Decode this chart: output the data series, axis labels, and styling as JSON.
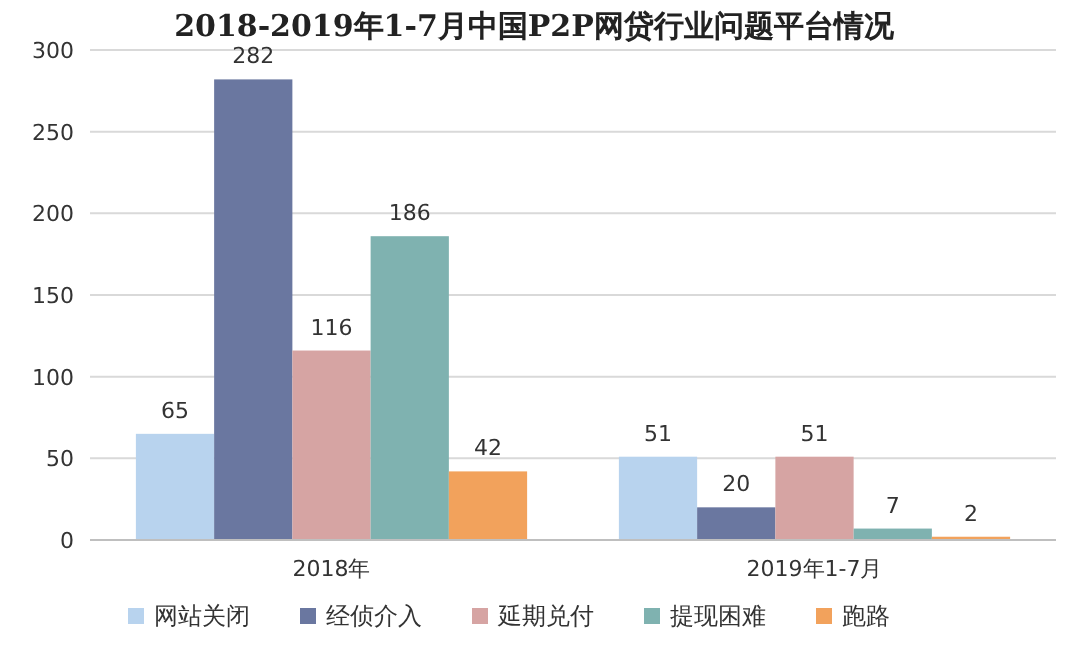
{
  "chart_data": {
    "type": "bar",
    "title": "2018-2019年1-7月中国P2P网贷行业问题平台情况",
    "categories": [
      "2018年",
      "2019年1-7月"
    ],
    "series": [
      {
        "name": "网站关闭",
        "color": "#b8d3ee",
        "values": [
          65,
          51
        ]
      },
      {
        "name": "经侦介入",
        "color": "#6a77a0",
        "values": [
          282,
          20
        ]
      },
      {
        "name": "延期兑付",
        "color": "#d6a4a3",
        "values": [
          116,
          51
        ]
      },
      {
        "name": "提现困难",
        "color": "#7fb2b0",
        "values": [
          186,
          7
        ]
      },
      {
        "name": "跑路",
        "color": "#f2a25c",
        "values": [
          42,
          2
        ]
      }
    ],
    "ylim": [
      0,
      300
    ],
    "yticks": [
      0,
      50,
      100,
      150,
      200,
      250,
      300
    ],
    "grid": "y",
    "legend": "bottom",
    "data_labels": true
  }
}
